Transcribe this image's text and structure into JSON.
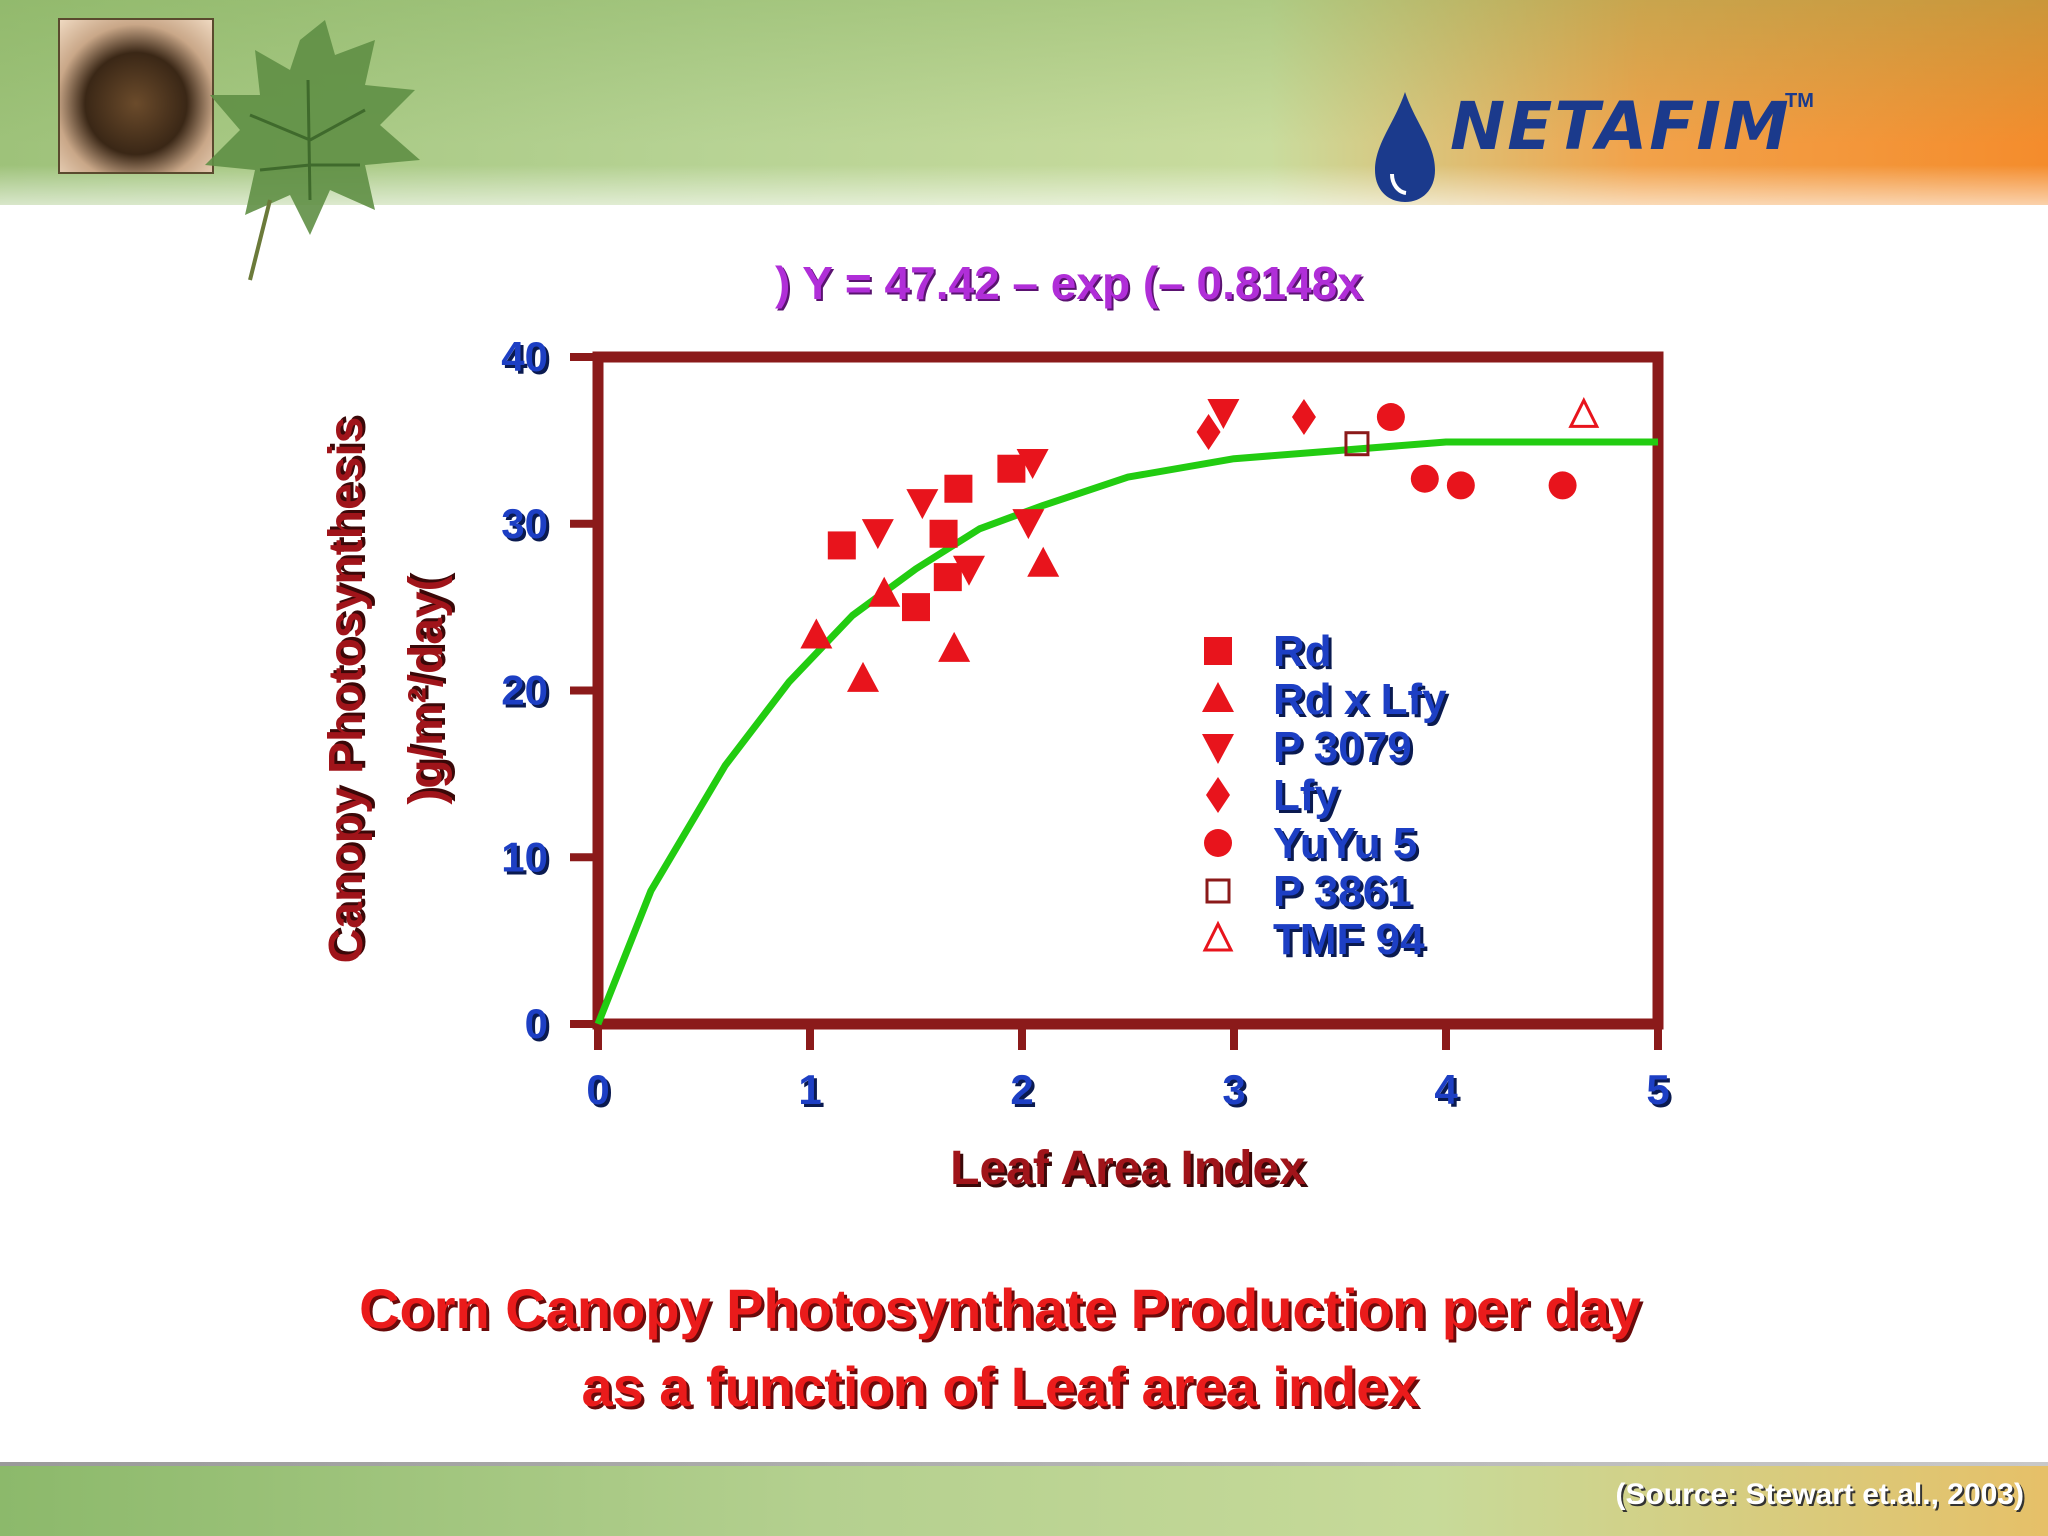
{
  "slide": {
    "logo_text": "NETAFIM",
    "logo_tm": "TM",
    "caption_line1": "Corn Canopy Photosynthate Production per day",
    "caption_line2": "as a function of Leaf area index",
    "source": "(Source: Stewart et.al., 2003)"
  },
  "chart_data": {
    "type": "scatter",
    "equation": ") Y = 47.42 – exp (– 0.8148x",
    "xlabel": "Leaf Area Index",
    "ylabel_line1": "Canopy Photosynthesis",
    "ylabel_line2": ")g/m²/day(",
    "xlim": [
      0,
      5
    ],
    "ylim": [
      0,
      40
    ],
    "x_ticks": [
      "0",
      "1",
      "2",
      "3",
      "4",
      "5"
    ],
    "y_ticks": [
      "0",
      "10",
      "20",
      "30",
      "40"
    ],
    "grid": false,
    "legend_position": "inside-center-right",
    "colors": {
      "frame": "#8b1a1a",
      "markers": "#e8141c",
      "fit_line": "#22cc11",
      "axis_text": "#1d3fc4",
      "caption": "#ea1b1b",
      "equation": "#b02ed8"
    },
    "series": [
      {
        "name": "Rd",
        "marker": "square",
        "points": [
          [
            1.15,
            28.7
          ],
          [
            1.63,
            29.4
          ],
          [
            1.7,
            32.1
          ],
          [
            1.95,
            33.3
          ],
          [
            1.65,
            26.8
          ],
          [
            1.5,
            25
          ]
        ]
      },
      {
        "name": "Rd x Lfy",
        "marker": "triangle-up",
        "points": [
          [
            1.03,
            23.3
          ],
          [
            1.25,
            20.7
          ],
          [
            1.35,
            25.8
          ],
          [
            1.68,
            22.5
          ],
          [
            2.1,
            27.6
          ]
        ]
      },
      {
        "name": "P 3079",
        "marker": "triangle-down",
        "points": [
          [
            1.32,
            29.5
          ],
          [
            1.53,
            31.3
          ],
          [
            1.75,
            27.3
          ],
          [
            2.05,
            33.7
          ],
          [
            2.03,
            30.1
          ],
          [
            2.95,
            36.7
          ]
        ]
      },
      {
        "name": "Lfy",
        "marker": "diamond",
        "points": [
          [
            2.88,
            35.5
          ],
          [
            3.33,
            36.4
          ]
        ]
      },
      {
        "name": "YuYu 5",
        "marker": "circle",
        "points": [
          [
            3.74,
            36.4
          ],
          [
            3.9,
            32.7
          ],
          [
            4.07,
            32.3
          ],
          [
            4.55,
            32.3
          ]
        ]
      },
      {
        "name": "P 3861",
        "marker": "open-square",
        "points": [
          [
            3.58,
            34.8
          ]
        ]
      },
      {
        "name": "TMF 94",
        "marker": "open-triangle",
        "points": [
          [
            4.65,
            36.5
          ]
        ]
      }
    ],
    "fit_curve": {
      "x": [
        0,
        0.25,
        0.6,
        0.9,
        1.2,
        1.5,
        1.8,
        2.1,
        2.5,
        3,
        3.5,
        4,
        4.5,
        5
      ],
      "y": [
        0,
        8,
        15.5,
        20.5,
        24.5,
        27.3,
        29.7,
        31.1,
        32.8,
        33.9,
        34.4,
        34.9,
        34.9,
        34.9
      ]
    }
  }
}
